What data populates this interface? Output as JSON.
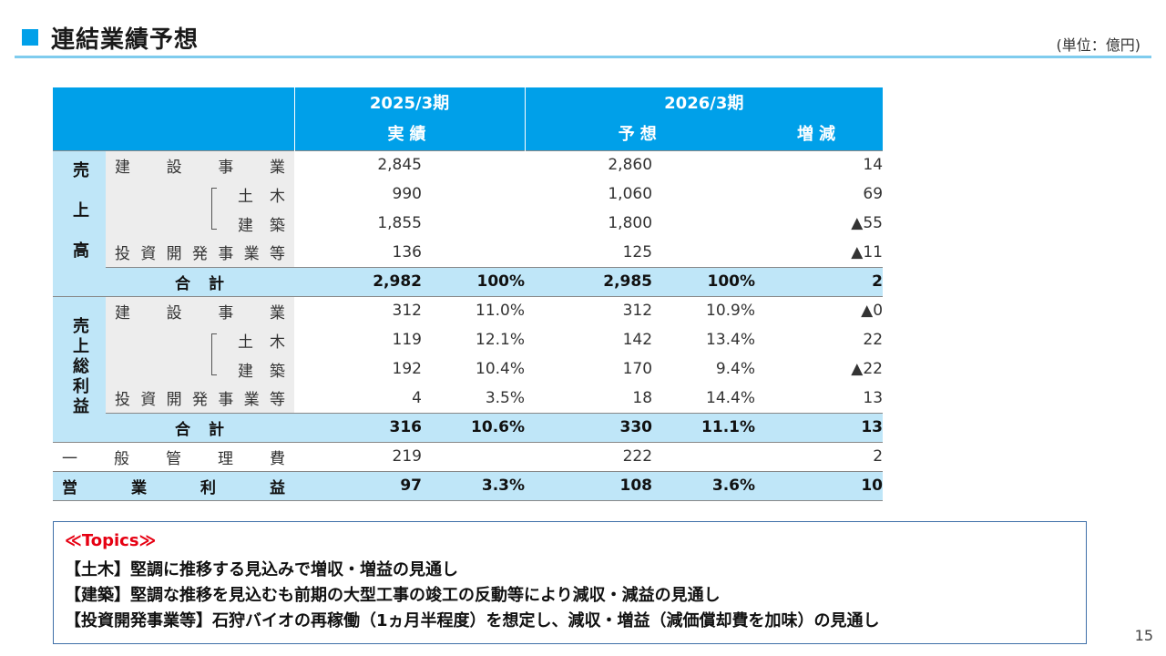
{
  "header": {
    "title": "連結業績予想",
    "unit": "(単位：億円)"
  },
  "table": {
    "period_prev": "2025/3期",
    "period_next": "2026/3期",
    "col_actual": "実績",
    "col_forecast": "予想",
    "col_change": "増減",
    "sales": {
      "section_label": "売上高",
      "rows": [
        {
          "label": "建設事業",
          "actual": "2,845",
          "actual_pct": "",
          "forecast": "2,860",
          "forecast_pct": "",
          "change": "14"
        },
        {
          "label": "土木",
          "actual": "990",
          "actual_pct": "",
          "forecast": "1,060",
          "forecast_pct": "",
          "change": "69"
        },
        {
          "label": "建築",
          "actual": "1,855",
          "actual_pct": "",
          "forecast": "1,800",
          "forecast_pct": "",
          "change": "▲55"
        },
        {
          "label": "投資開発事業等",
          "actual": "136",
          "actual_pct": "",
          "forecast": "125",
          "forecast_pct": "",
          "change": "▲11"
        }
      ],
      "total": {
        "label": "合計",
        "actual": "2,982",
        "actual_pct": "100%",
        "forecast": "2,985",
        "forecast_pct": "100%",
        "change": "2"
      }
    },
    "gross_profit": {
      "section_label": "売上総利益",
      "rows": [
        {
          "label": "建設事業",
          "actual": "312",
          "actual_pct": "11.0%",
          "forecast": "312",
          "forecast_pct": "10.9%",
          "change": "▲0"
        },
        {
          "label": "土木",
          "actual": "119",
          "actual_pct": "12.1%",
          "forecast": "142",
          "forecast_pct": "13.4%",
          "change": "22"
        },
        {
          "label": "建築",
          "actual": "192",
          "actual_pct": "10.4%",
          "forecast": "170",
          "forecast_pct": "9.4%",
          "change": "▲22"
        },
        {
          "label": "投資開発事業等",
          "actual": "4",
          "actual_pct": "3.5%",
          "forecast": "18",
          "forecast_pct": "14.4%",
          "change": "13"
        }
      ],
      "total": {
        "label": "合計",
        "actual": "316",
        "actual_pct": "10.6%",
        "forecast": "330",
        "forecast_pct": "11.1%",
        "change": "13"
      }
    },
    "sga": {
      "label": "一般管理費",
      "actual": "219",
      "actual_pct": "",
      "forecast": "222",
      "forecast_pct": "",
      "change": "2"
    },
    "operating_profit": {
      "label": "営業利益",
      "actual": "97",
      "actual_pct": "3.3%",
      "forecast": "108",
      "forecast_pct": "3.6%",
      "change": "10"
    }
  },
  "topics": {
    "heading": "≪Topics≫",
    "lines": [
      "【土木】堅調に推移する見込みで増収・増益の見通し",
      "【建築】堅調な推移を見込むも前期の大型工事の竣工の反動等により減収・減益の見通し",
      "【投資開発事業等】石狩バイオの再稼働（1ヵ月半程度）を想定し、減収・増益（減価償却費を加味）の見通し"
    ]
  },
  "page_number": "15",
  "colors": {
    "accent": "#00A0E9",
    "light_accent": "#BFE6F8",
    "label_bg": "#EDEDED",
    "topics_heading": "#E60012",
    "topics_border": "#3F6FA8"
  }
}
